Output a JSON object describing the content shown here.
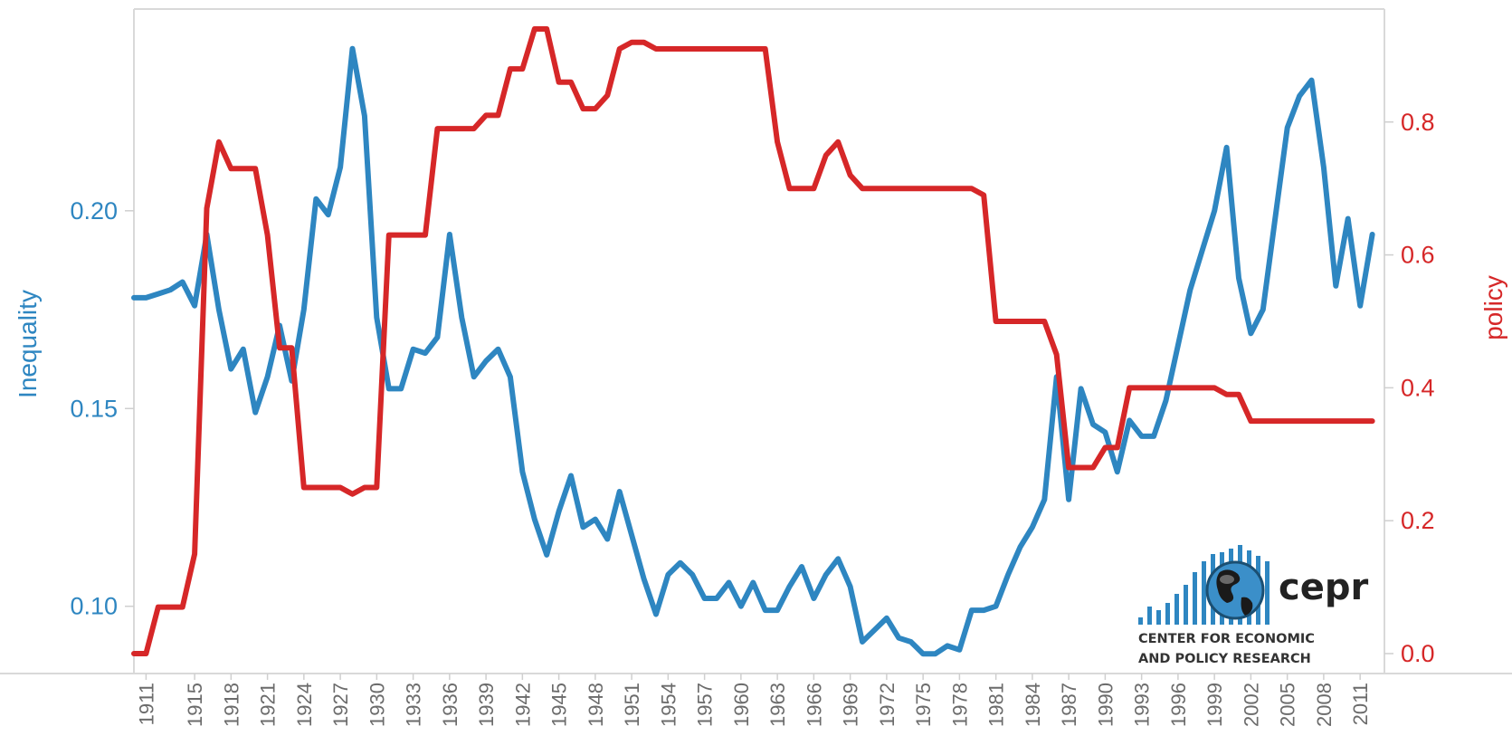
{
  "chart_data": {
    "type": "line",
    "title": "",
    "xlabel": "",
    "ylabel_left": "Inequality",
    "ylabel_right": "policy",
    "xlim": [
      1910,
      2013
    ],
    "ylim_left": [
      0.083,
      0.251
    ],
    "ylim_right": [
      -0.03,
      0.97
    ],
    "left_ticks": [
      0.1,
      0.15,
      0.2
    ],
    "left_tick_labels": [
      "0.10",
      "0.15",
      "0.20"
    ],
    "right_ticks": [
      0.0,
      0.2,
      0.4,
      0.6,
      0.8
    ],
    "right_tick_labels": [
      "0.0",
      "0.2",
      "0.4",
      "0.6",
      "0.8"
    ],
    "x_tick_labels": [
      "1911",
      "1915",
      "1918",
      "1921",
      "1924",
      "1927",
      "1930",
      "1933",
      "1936",
      "1939",
      "1942",
      "1945",
      "1948",
      "1951",
      "1954",
      "1957",
      "1960",
      "1963",
      "1966",
      "1969",
      "1972",
      "1975",
      "1978",
      "1981",
      "1984",
      "1987",
      "1990",
      "1993",
      "1996",
      "1999",
      "2002",
      "2005",
      "2008",
      "2011"
    ],
    "series": [
      {
        "name": "Inequality",
        "axis": "left",
        "color": "#2e86c1",
        "points": [
          [
            1910,
            0.178
          ],
          [
            1911,
            0.178
          ],
          [
            1912,
            0.179
          ],
          [
            1913,
            0.18
          ],
          [
            1914,
            0.182
          ],
          [
            1915,
            0.176
          ],
          [
            1916,
            0.194
          ],
          [
            1917,
            0.175
          ],
          [
            1918,
            0.16
          ],
          [
            1919,
            0.165
          ],
          [
            1920,
            0.149
          ],
          [
            1921,
            0.158
          ],
          [
            1922,
            0.171
          ],
          [
            1923,
            0.157
          ],
          [
            1924,
            0.175
          ],
          [
            1925,
            0.203
          ],
          [
            1926,
            0.199
          ],
          [
            1927,
            0.211
          ],
          [
            1928,
            0.241
          ],
          [
            1929,
            0.224
          ],
          [
            1930,
            0.173
          ],
          [
            1931,
            0.155
          ],
          [
            1932,
            0.155
          ],
          [
            1933,
            0.165
          ],
          [
            1934,
            0.164
          ],
          [
            1935,
            0.168
          ],
          [
            1936,
            0.194
          ],
          [
            1937,
            0.173
          ],
          [
            1938,
            0.158
          ],
          [
            1939,
            0.162
          ],
          [
            1940,
            0.165
          ],
          [
            1941,
            0.158
          ],
          [
            1942,
            0.134
          ],
          [
            1943,
            0.122
          ],
          [
            1944,
            0.113
          ],
          [
            1945,
            0.124
          ],
          [
            1946,
            0.133
          ],
          [
            1947,
            0.12
          ],
          [
            1948,
            0.122
          ],
          [
            1949,
            0.117
          ],
          [
            1950,
            0.129
          ],
          [
            1951,
            0.118
          ],
          [
            1952,
            0.107
          ],
          [
            1953,
            0.098
          ],
          [
            1954,
            0.108
          ],
          [
            1955,
            0.111
          ],
          [
            1956,
            0.108
          ],
          [
            1957,
            0.102
          ],
          [
            1958,
            0.102
          ],
          [
            1959,
            0.106
          ],
          [
            1960,
            0.1
          ],
          [
            1961,
            0.106
          ],
          [
            1962,
            0.099
          ],
          [
            1963,
            0.099
          ],
          [
            1964,
            0.105
          ],
          [
            1965,
            0.11
          ],
          [
            1966,
            0.102
          ],
          [
            1967,
            0.108
          ],
          [
            1968,
            0.112
          ],
          [
            1969,
            0.105
          ],
          [
            1970,
            0.091
          ],
          [
            1971,
            0.094
          ],
          [
            1972,
            0.097
          ],
          [
            1973,
            0.092
          ],
          [
            1974,
            0.091
          ],
          [
            1975,
            0.088
          ],
          [
            1976,
            0.088
          ],
          [
            1977,
            0.09
          ],
          [
            1978,
            0.089
          ],
          [
            1979,
            0.099
          ],
          [
            1980,
            0.099
          ],
          [
            1981,
            0.1
          ],
          [
            1982,
            0.108
          ],
          [
            1983,
            0.115
          ],
          [
            1984,
            0.12
          ],
          [
            1985,
            0.127
          ],
          [
            1986,
            0.158
          ],
          [
            1987,
            0.127
          ],
          [
            1988,
            0.155
          ],
          [
            1989,
            0.146
          ],
          [
            1990,
            0.144
          ],
          [
            1991,
            0.134
          ],
          [
            1992,
            0.147
          ],
          [
            1993,
            0.143
          ],
          [
            1994,
            0.143
          ],
          [
            1995,
            0.152
          ],
          [
            1996,
            0.166
          ],
          [
            1997,
            0.18
          ],
          [
            1998,
            0.19
          ],
          [
            1999,
            0.2
          ],
          [
            2000,
            0.216
          ],
          [
            2001,
            0.183
          ],
          [
            2002,
            0.169
          ],
          [
            2003,
            0.175
          ],
          [
            2004,
            0.198
          ],
          [
            2005,
            0.221
          ],
          [
            2006,
            0.229
          ],
          [
            2007,
            0.233
          ],
          [
            2008,
            0.211
          ],
          [
            2009,
            0.181
          ],
          [
            2010,
            0.198
          ],
          [
            2011,
            0.176
          ],
          [
            2012,
            0.194
          ]
        ]
      },
      {
        "name": "policy",
        "axis": "right",
        "color": "#d62728",
        "points": [
          [
            1910,
            0.0
          ],
          [
            1911,
            0.0
          ],
          [
            1912,
            0.07
          ],
          [
            1913,
            0.07
          ],
          [
            1914,
            0.07
          ],
          [
            1915,
            0.15
          ],
          [
            1916,
            0.67
          ],
          [
            1917,
            0.77
          ],
          [
            1918,
            0.73
          ],
          [
            1919,
            0.73
          ],
          [
            1920,
            0.73
          ],
          [
            1921,
            0.63
          ],
          [
            1922,
            0.46
          ],
          [
            1923,
            0.46
          ],
          [
            1924,
            0.25
          ],
          [
            1925,
            0.25
          ],
          [
            1926,
            0.25
          ],
          [
            1927,
            0.25
          ],
          [
            1928,
            0.24
          ],
          [
            1929,
            0.25
          ],
          [
            1930,
            0.25
          ],
          [
            1931,
            0.63
          ],
          [
            1932,
            0.63
          ],
          [
            1933,
            0.63
          ],
          [
            1934,
            0.63
          ],
          [
            1935,
            0.79
          ],
          [
            1936,
            0.79
          ],
          [
            1937,
            0.79
          ],
          [
            1938,
            0.79
          ],
          [
            1939,
            0.81
          ],
          [
            1940,
            0.81
          ],
          [
            1941,
            0.88
          ],
          [
            1942,
            0.88
          ],
          [
            1943,
            0.94
          ],
          [
            1944,
            0.94
          ],
          [
            1945,
            0.86
          ],
          [
            1946,
            0.86
          ],
          [
            1947,
            0.82
          ],
          [
            1948,
            0.82
          ],
          [
            1949,
            0.84
          ],
          [
            1950,
            0.91
          ],
          [
            1951,
            0.92
          ],
          [
            1952,
            0.92
          ],
          [
            1953,
            0.91
          ],
          [
            1954,
            0.91
          ],
          [
            1955,
            0.91
          ],
          [
            1956,
            0.91
          ],
          [
            1957,
            0.91
          ],
          [
            1958,
            0.91
          ],
          [
            1959,
            0.91
          ],
          [
            1960,
            0.91
          ],
          [
            1961,
            0.91
          ],
          [
            1962,
            0.91
          ],
          [
            1963,
            0.77
          ],
          [
            1964,
            0.7
          ],
          [
            1965,
            0.7
          ],
          [
            1966,
            0.7
          ],
          [
            1967,
            0.75
          ],
          [
            1968,
            0.77
          ],
          [
            1969,
            0.72
          ],
          [
            1970,
            0.7
          ],
          [
            1971,
            0.7
          ],
          [
            1972,
            0.7
          ],
          [
            1973,
            0.7
          ],
          [
            1974,
            0.7
          ],
          [
            1975,
            0.7
          ],
          [
            1976,
            0.7
          ],
          [
            1977,
            0.7
          ],
          [
            1978,
            0.7
          ],
          [
            1979,
            0.7
          ],
          [
            1980,
            0.69
          ],
          [
            1981,
            0.5
          ],
          [
            1982,
            0.5
          ],
          [
            1983,
            0.5
          ],
          [
            1984,
            0.5
          ],
          [
            1985,
            0.5
          ],
          [
            1986,
            0.45
          ],
          [
            1987,
            0.28
          ],
          [
            1988,
            0.28
          ],
          [
            1989,
            0.28
          ],
          [
            1990,
            0.31
          ],
          [
            1991,
            0.31
          ],
          [
            1992,
            0.4
          ],
          [
            1993,
            0.4
          ],
          [
            1994,
            0.4
          ],
          [
            1995,
            0.4
          ],
          [
            1996,
            0.4
          ],
          [
            1997,
            0.4
          ],
          [
            1998,
            0.4
          ],
          [
            1999,
            0.4
          ],
          [
            2000,
            0.39
          ],
          [
            2001,
            0.39
          ],
          [
            2002,
            0.35
          ],
          [
            2003,
            0.35
          ],
          [
            2004,
            0.35
          ],
          [
            2005,
            0.35
          ],
          [
            2006,
            0.35
          ],
          [
            2007,
            0.35
          ],
          [
            2008,
            0.35
          ],
          [
            2009,
            0.35
          ],
          [
            2010,
            0.35
          ],
          [
            2011,
            0.35
          ],
          [
            2012,
            0.35
          ]
        ]
      }
    ],
    "grid": false,
    "legend": "none"
  },
  "logo": {
    "name": "cepr",
    "line1": "CENTER FOR ECONOMIC",
    "line2": "AND POLICY RESEARCH",
    "color": "#2e86c1"
  },
  "colors": {
    "left_axis": "#2e86c1",
    "right_axis": "#d62728"
  }
}
